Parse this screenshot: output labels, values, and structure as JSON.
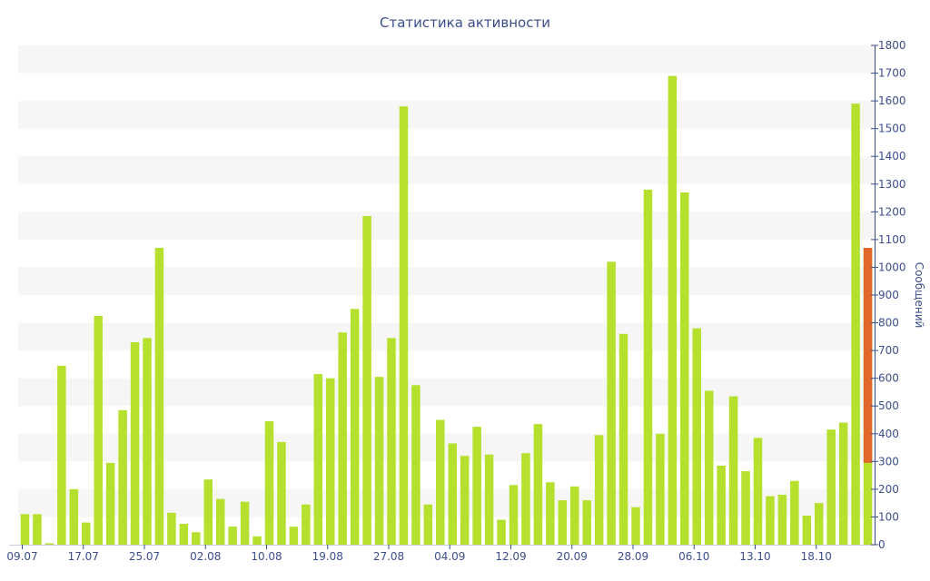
{
  "chart_data": {
    "type": "bar",
    "title": "Статистика активности",
    "ylabel": "Сообщений",
    "xlabel": "",
    "ylim": [
      0,
      1800
    ],
    "y_ticks": [
      0,
      100,
      200,
      300,
      400,
      500,
      600,
      700,
      800,
      900,
      1000,
      1100,
      1200,
      1300,
      1400,
      1500,
      1600,
      1700,
      1800
    ],
    "x_tick_labels": [
      "09.07",
      "17.07",
      "25.07",
      "02.08",
      "10.08",
      "19.08",
      "27.08",
      "04.09",
      "12.09",
      "20.09",
      "28.09",
      "06.10",
      "13.10",
      "18.10"
    ],
    "x_tick_positions": [
      0,
      5,
      10,
      15,
      20,
      25,
      30,
      35,
      40,
      45,
      50,
      55,
      60,
      65
    ],
    "bar_colors": {
      "default": "#b5e02e",
      "highlight": "#e0682d"
    },
    "values": [
      110,
      110,
      5,
      645,
      200,
      80,
      825,
      295,
      485,
      730,
      745,
      1070,
      115,
      75,
      45,
      235,
      165,
      65,
      155,
      30,
      445,
      370,
      65,
      145,
      615,
      600,
      765,
      850,
      1185,
      605,
      745,
      1580,
      575,
      145,
      450,
      365,
      320,
      425,
      325,
      90,
      215,
      330,
      435,
      225,
      160,
      210,
      160,
      395,
      1020,
      760,
      135,
      1280,
      400,
      1690,
      1270,
      780,
      555,
      285,
      535,
      265,
      385,
      175,
      180,
      230,
      105,
      150,
      415,
      440,
      1590,
      1070
    ],
    "highlight": {
      "index": 69,
      "from": 295,
      "to": 1070
    },
    "grid": "alternating horizontal bands",
    "y_axis_position": "right"
  }
}
